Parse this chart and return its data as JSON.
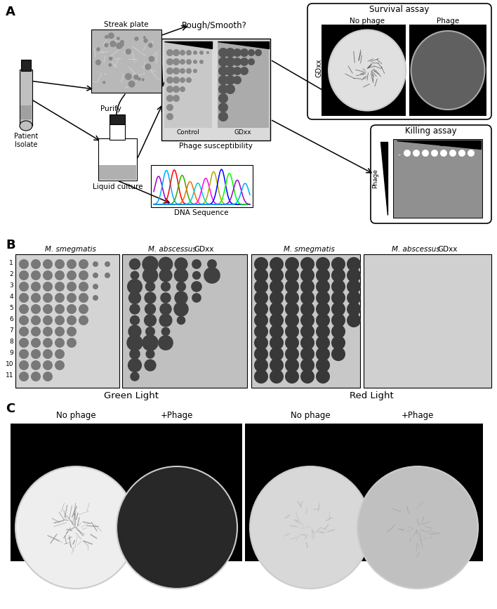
{
  "panel_A_label": "A",
  "panel_B_label": "B",
  "panel_C_label": "C",
  "survival_assay": "Survival assay",
  "no_phage": "No phage",
  "phage": "Phage",
  "gdxx": "GDxx",
  "killing_assay": "Killing assay",
  "rough_smooth": "Rough/Smooth?",
  "streak_plate": "Streak plate",
  "liquid_culture": "Liquid culture",
  "purify": "Purify",
  "patient_isolate": "Patient\nIsolate",
  "phage_susceptibility": "Phage susceptibility",
  "control": "Control",
  "dna_sequence": "DNA Sequence",
  "green_light": "Green Light",
  "red_light": "Red Light",
  "m_smeg": "M. smegmatis",
  "m_abs": "M. abscessus",
  "c_no_phage": "No phage",
  "c_phage1": "+Phage",
  "c_no_phage2": "No phage",
  "c_phage2": "+Phage",
  "row_numbers": [
    "1",
    "2",
    "3",
    "4",
    "5",
    "6",
    "7",
    "8",
    "9",
    "10",
    "11"
  ],
  "dna_colors": [
    "#9900CC",
    "#00AAFF",
    "#FF0000",
    "#33AA00",
    "#FF6600",
    "#00CCCC",
    "#FF00FF",
    "#AAAA00",
    "#0000FF",
    "#00FF00"
  ],
  "fw": 7.08,
  "fh": 8.67,
  "dpi": 100
}
